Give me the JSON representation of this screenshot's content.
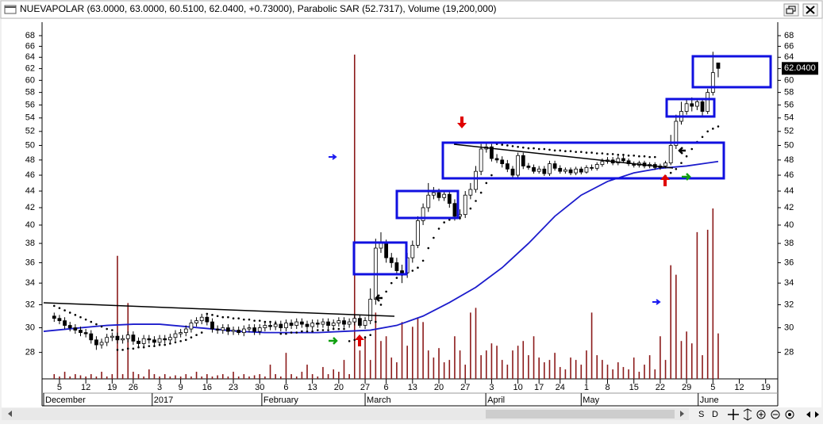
{
  "window": {
    "title": "NUEVAPOLAR (63.0000, 63.0000, 60.5100, 62.0400, +0.73000), Parabolic SAR (52.7317), Volume (19,200,000)"
  },
  "toolbar": {
    "buttons": [
      "S",
      "D"
    ]
  },
  "chart_data": {
    "type": "candlestick",
    "log_scale": true,
    "xlim": [
      -2,
      137
    ],
    "ylim": [
      26,
      70.3
    ],
    "yticks": [
      28,
      30,
      32,
      34,
      36,
      38,
      40,
      42,
      44,
      46,
      48,
      50,
      52,
      54,
      56,
      58,
      60,
      62,
      64,
      66,
      68
    ],
    "xticks": [
      {
        "value": 1,
        "label": "5"
      },
      {
        "value": 6,
        "label": "12"
      },
      {
        "value": 11,
        "label": "19"
      },
      {
        "value": 15,
        "label": "26"
      },
      {
        "value": 20,
        "label": "3"
      },
      {
        "value": 24,
        "label": "9"
      },
      {
        "value": 29,
        "label": "16"
      },
      {
        "value": 34,
        "label": "23"
      },
      {
        "value": 39,
        "label": "30"
      },
      {
        "value": 44,
        "label": "6"
      },
      {
        "value": 49,
        "label": "13"
      },
      {
        "value": 54,
        "label": "20"
      },
      {
        "value": 59,
        "label": "27"
      },
      {
        "value": 63,
        "label": "6"
      },
      {
        "value": 68,
        "label": "13"
      },
      {
        "value": 73,
        "label": "20"
      },
      {
        "value": 78,
        "label": "27"
      },
      {
        "value": 83,
        "label": "3"
      },
      {
        "value": 88,
        "label": "10"
      },
      {
        "value": 92,
        "label": "17"
      },
      {
        "value": 96,
        "label": "24"
      },
      {
        "value": 101,
        "label": "1"
      },
      {
        "value": 105,
        "label": "8"
      },
      {
        "value": 110,
        "label": "15"
      },
      {
        "value": 115,
        "label": "22"
      },
      {
        "value": 120,
        "label": "29"
      },
      {
        "value": 125,
        "label": "5"
      },
      {
        "value": 130,
        "label": "12"
      },
      {
        "value": 135,
        "label": "19"
      }
    ],
    "month_labels": [
      {
        "value": -2,
        "label": "December"
      },
      {
        "value": 18.6,
        "label": "2017"
      },
      {
        "value": 39.4,
        "label": "February"
      },
      {
        "value": 59,
        "label": "March"
      },
      {
        "value": 81.9,
        "label": "April"
      },
      {
        "value": 100,
        "label": "May"
      },
      {
        "value": 122.2,
        "label": "June"
      }
    ],
    "open": [
      31.0,
      30.8,
      30.6,
      30.2,
      30.0,
      29.8,
      29.6,
      29.5,
      29.0,
      28.6,
      28.8,
      29.2,
      29.3,
      29.0,
      29.1,
      29.4,
      28.9,
      28.7,
      29.1,
      29.0,
      28.8,
      29.1,
      29.0,
      29.2,
      29.5,
      29.6,
      29.9,
      30.4,
      30.6,
      30.9,
      30.5,
      29.9,
      29.8,
      30.0,
      29.7,
      29.8,
      29.6,
      29.9,
      30.0,
      29.7,
      30.0,
      30.2,
      30.1,
      30.3,
      30.0,
      30.4,
      30.2,
      30.5,
      30.3,
      30.1,
      30.4,
      30.3,
      30.5,
      30.2,
      30.4,
      30.6,
      30.3,
      30.5,
      30.8,
      30.2,
      30.6,
      32.5,
      37.5,
      38.0,
      36.5,
      36.0,
      35.2,
      35.0,
      36.5,
      37.8,
      40.5,
      42.0,
      43.5,
      43.8,
      43.2,
      43.6,
      42.5,
      41.0,
      41.2,
      43.5,
      44.2,
      46.5,
      49.5,
      49.8,
      48.2,
      48.0,
      47.5,
      46.8,
      46.0,
      48.6,
      47.2,
      47.0,
      46.5,
      46.8,
      46.2,
      47.5,
      46.9,
      46.5,
      46.7,
      46.3,
      46.8,
      46.4,
      47.0,
      46.9,
      47.4,
      47.8,
      48.0,
      47.6,
      48.2,
      47.9,
      47.5,
      47.3,
      47.6,
      47.2,
      47.4,
      47.0,
      47.2,
      47.6,
      50.0,
      53.5,
      55.0,
      56.2,
      55.8,
      56.5,
      55.0,
      58.0,
      63.0
    ],
    "high": [
      31.3,
      31.1,
      30.9,
      30.5,
      30.3,
      30.1,
      29.9,
      29.8,
      29.3,
      29.1,
      29.5,
      29.6,
      29.6,
      29.4,
      29.7,
      29.7,
      29.2,
      29.4,
      29.4,
      29.3,
      29.4,
      29.4,
      29.5,
      29.8,
      29.9,
      30.2,
      30.7,
      30.9,
      31.2,
      31.2,
      30.8,
      30.2,
      30.3,
      30.3,
      30.1,
      30.1,
      30.2,
      30.3,
      30.3,
      30.3,
      30.5,
      30.5,
      30.6,
      30.6,
      30.7,
      30.7,
      30.8,
      30.8,
      30.6,
      30.7,
      30.7,
      30.8,
      30.8,
      30.7,
      30.9,
      30.9,
      30.8,
      31.1,
      31.1,
      30.9,
      33.5,
      38.5,
      39.2,
      38.4,
      37.0,
      36.5,
      35.8,
      37.0,
      38.3,
      41.0,
      42.5,
      45.0,
      44.5,
      44.3,
      44.0,
      44.0,
      43.0,
      41.8,
      44.0,
      45.0,
      47.2,
      50.2,
      50.3,
      50.2,
      48.8,
      48.5,
      48.0,
      47.2,
      49.0,
      49.0,
      47.6,
      47.4,
      47.2,
      47.2,
      47.9,
      47.9,
      47.3,
      47.0,
      47.0,
      47.1,
      47.1,
      47.3,
      47.4,
      47.7,
      48.2,
      48.4,
      48.4,
      48.5,
      48.6,
      48.2,
      47.8,
      47.9,
      47.9,
      47.7,
      47.7,
      47.5,
      47.9,
      51.5,
      54.5,
      56.5,
      57.0,
      57.2,
      57.0,
      57.0,
      58.6,
      65.0,
      63.0
    ],
    "low": [
      30.5,
      30.3,
      29.9,
      29.7,
      29.5,
      29.3,
      29.2,
      28.7,
      28.2,
      28.3,
      28.5,
      28.9,
      28.7,
      28.7,
      28.8,
      28.6,
      28.4,
      28.4,
      28.7,
      28.5,
      28.5,
      28.7,
      28.7,
      28.9,
      29.2,
      29.3,
      29.6,
      30.1,
      30.3,
      30.2,
      29.6,
      29.5,
      29.5,
      29.4,
      29.4,
      29.4,
      29.3,
      29.6,
      29.4,
      29.4,
      29.7,
      29.8,
      29.8,
      29.7,
      29.7,
      29.9,
      29.9,
      30.0,
      29.8,
      29.8,
      30.0,
      30.0,
      29.9,
      29.9,
      30.1,
      30.0,
      30.0,
      30.2,
      30.0,
      29.9,
      30.3,
      32.0,
      37.0,
      36.0,
      35.5,
      34.8,
      34.0,
      34.5,
      36.0,
      37.5,
      40.0,
      41.5,
      43.0,
      42.8,
      42.8,
      42.0,
      40.5,
      40.6,
      40.8,
      43.0,
      43.8,
      46.0,
      49.0,
      47.8,
      47.6,
      47.0,
      46.4,
      45.6,
      45.7,
      46.8,
      46.7,
      46.2,
      46.2,
      45.9,
      45.9,
      46.6,
      46.2,
      46.2,
      46.0,
      46.0,
      46.1,
      46.2,
      46.6,
      46.6,
      47.1,
      47.5,
      47.3,
      47.3,
      47.6,
      47.2,
      47.0,
      47.0,
      46.9,
      46.9,
      46.7,
      46.7,
      46.9,
      47.3,
      49.5,
      53.0,
      54.5,
      55.0,
      55.2,
      54.4,
      54.6,
      57.5,
      60.51
    ],
    "close": [
      30.8,
      30.6,
      30.2,
      30.0,
      29.8,
      29.6,
      29.5,
      29.0,
      28.6,
      28.8,
      29.2,
      29.3,
      29.0,
      29.1,
      29.4,
      28.9,
      28.7,
      29.1,
      29.0,
      28.8,
      29.1,
      29.0,
      29.2,
      29.5,
      29.6,
      29.9,
      30.4,
      30.6,
      30.9,
      30.5,
      29.9,
      29.8,
      30.0,
      29.7,
      29.8,
      29.6,
      29.9,
      30.0,
      29.7,
      30.0,
      30.2,
      30.1,
      30.3,
      30.0,
      30.4,
      30.2,
      30.5,
      30.3,
      30.1,
      30.4,
      30.3,
      30.5,
      30.2,
      30.4,
      30.6,
      30.3,
      30.5,
      30.8,
      30.2,
      30.6,
      32.5,
      37.5,
      38.0,
      36.5,
      36.0,
      35.2,
      35.0,
      36.5,
      37.8,
      40.5,
      42.0,
      43.5,
      43.8,
      43.2,
      43.6,
      42.5,
      41.0,
      41.2,
      43.5,
      44.2,
      46.5,
      49.5,
      49.8,
      48.2,
      48.0,
      47.5,
      46.8,
      46.0,
      48.6,
      47.2,
      47.0,
      46.5,
      46.8,
      46.2,
      47.5,
      46.9,
      46.5,
      46.7,
      46.3,
      46.8,
      46.4,
      47.0,
      46.9,
      47.4,
      47.8,
      48.0,
      47.6,
      48.2,
      47.9,
      47.5,
      47.3,
      47.6,
      47.2,
      47.4,
      47.0,
      47.2,
      47.6,
      50.0,
      53.5,
      55.0,
      56.2,
      55.8,
      56.5,
      55.0,
      58.0,
      61.31,
      62.04
    ],
    "color_up": "#ffffff",
    "color_down": "#000000",
    "last_price": {
      "value": 62.04,
      "label": "62.0400"
    },
    "sar": {
      "color": "#000000",
      "values": [
        31.9,
        31.7,
        31.5,
        31.3,
        31.1,
        30.9,
        30.7,
        30.5,
        30.3,
        30.1,
        29.9,
        29.8,
        28.2,
        28.2,
        28.3,
        28.3,
        28.4,
        28.4,
        28.5,
        28.5,
        28.6,
        28.6,
        28.7,
        28.8,
        28.9,
        29.0,
        29.2,
        29.4,
        29.6,
        31.2,
        31.1,
        31.0,
        30.9,
        30.9,
        30.8,
        30.8,
        30.7,
        30.7,
        30.6,
        30.6,
        30.5,
        30.5,
        30.4,
        29.5,
        29.5,
        29.6,
        29.6,
        29.7,
        29.7,
        29.7,
        29.8,
        29.8,
        29.8,
        29.9,
        29.9,
        29.9,
        28.9,
        29.0,
        29.1,
        29.2,
        29.4,
        30.5,
        32.0,
        33.2,
        34.0,
        34.5,
        34.8,
        35.0,
        35.2,
        35.5,
        36.2,
        37.5,
        38.6,
        39.6,
        40.3,
        40.6,
        40.8,
        40.8,
        41.3,
        41.9,
        42.8,
        43.8,
        45.0,
        46.0,
        50.2,
        50.1,
        50.0,
        49.9,
        49.8,
        49.7,
        49.6,
        49.6,
        49.5,
        49.5,
        49.4,
        49.3,
        49.3,
        49.2,
        49.2,
        49.1,
        49.1,
        49.0,
        49.0,
        48.9,
        48.9,
        48.8,
        48.8,
        48.7,
        48.7,
        48.6,
        48.6,
        48.5,
        48.5,
        48.4,
        48.4,
        45.6,
        45.9,
        46.3,
        46.8,
        47.6,
        48.5,
        49.5,
        50.5,
        51.2,
        52.0,
        52.4,
        52.7317
      ]
    },
    "moving_average": {
      "color": "#1c1ccc",
      "x": [
        -2,
        5,
        10,
        15,
        20,
        25,
        30,
        35,
        40,
        45,
        50,
        55,
        60,
        65,
        70,
        75,
        80,
        85,
        90,
        95,
        100,
        105,
        110,
        115,
        120,
        126
      ],
      "values": [
        29.7,
        30.0,
        30.2,
        30.3,
        30.3,
        30.1,
        29.9,
        29.7,
        29.6,
        29.6,
        29.6,
        29.7,
        29.8,
        30.2,
        31.0,
        32.2,
        33.6,
        35.5,
        38.0,
        41.0,
        43.5,
        45.2,
        46.3,
        46.9,
        47.2,
        47.8
      ]
    },
    "volume": {
      "color": "#8b1a1a",
      "axis": "y2",
      "values": [
        2000000,
        1000000,
        3000000,
        1000000,
        2000000,
        1500000,
        1000000,
        2000000,
        1000000,
        3000000,
        1000000,
        2000000,
        52000000,
        2000000,
        32000000,
        3000000,
        2000000,
        1000000,
        4000000,
        2000000,
        1000000,
        2000000,
        1000000,
        1500000,
        1000000,
        2000000,
        1000000,
        3000000,
        1000000,
        2000000,
        1000000,
        1500000,
        2000000,
        1000000,
        3000000,
        1000000,
        2000000,
        1000000,
        1500000,
        2000000,
        1000000,
        6000000,
        2000000,
        1000000,
        11000000,
        2000000,
        1000000,
        3000000,
        6000000,
        2000000,
        1000000,
        5000000,
        2000000,
        4000000,
        3000000,
        8000000,
        2000000,
        137000000,
        12000000,
        18000000,
        8000000,
        28000000,
        16000000,
        18000000,
        9000000,
        7000000,
        24000000,
        14000000,
        22000000,
        26000000,
        24000000,
        12000000,
        9000000,
        13000000,
        7000000,
        8000000,
        18000000,
        12000000,
        6000000,
        28000000,
        30000000,
        10000000,
        12000000,
        15000000,
        14000000,
        8000000,
        6000000,
        12000000,
        14000000,
        16000000,
        10000000,
        18000000,
        9000000,
        7000000,
        8000000,
        11000000,
        5000000,
        4000000,
        9000000,
        8000000,
        6000000,
        12000000,
        28000000,
        10000000,
        8000000,
        6000000,
        4000000,
        7000000,
        5000000,
        4000000,
        9000000,
        3000000,
        6000000,
        10000000,
        4000000,
        18000000,
        8000000,
        48000000,
        44000000,
        16000000,
        20000000,
        15000000,
        62000000,
        10000000,
        63000000,
        72000000,
        19200000
      ]
    },
    "y2lim": [
      0,
      150000000
    ]
  }
}
